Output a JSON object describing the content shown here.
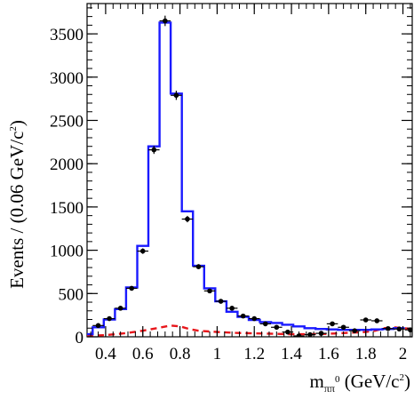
{
  "chart_data": {
    "type": "line",
    "xlabel": {
      "base": "m",
      "sub": "ππ",
      "subsup": "0",
      "unit": " (GeV/c",
      "unit_sup": "2",
      "unit_close": ")"
    },
    "ylabel": {
      "text": "Events / (0.06 GeV/c",
      "sup": "2",
      "close": ")"
    },
    "xlim": [
      0.3,
      2.05
    ],
    "ylim": [
      0,
      3850
    ],
    "x_ticks": [
      "0.4",
      "0.6",
      "0.8",
      "1",
      "1.2",
      "1.4",
      "1.6",
      "1.8",
      "2"
    ],
    "x_tick_values": [
      0.4,
      0.6,
      0.8,
      1.0,
      1.2,
      1.4,
      1.6,
      1.8,
      2.0
    ],
    "y_ticks": [
      "0",
      "500",
      "1000",
      "1500",
      "2000",
      "2500",
      "3000",
      "3500"
    ],
    "y_tick_values": [
      0,
      500,
      1000,
      1500,
      2000,
      2500,
      3000,
      3500
    ],
    "grid": false,
    "series": [
      {
        "kind": "points",
        "color": "#000000",
        "points": [
          {
            "x": 0.36,
            "y": 130,
            "err": 15
          },
          {
            "x": 0.42,
            "y": 210,
            "err": 18
          },
          {
            "x": 0.48,
            "y": 330,
            "err": 20
          },
          {
            "x": 0.54,
            "y": 560,
            "err": 24
          },
          {
            "x": 0.6,
            "y": 990,
            "err": 32
          },
          {
            "x": 0.66,
            "y": 2160,
            "err": 47
          },
          {
            "x": 0.72,
            "y": 3650,
            "err": 60
          },
          {
            "x": 0.78,
            "y": 2790,
            "err": 53
          },
          {
            "x": 0.84,
            "y": 1360,
            "err": 37
          },
          {
            "x": 0.9,
            "y": 810,
            "err": 28
          },
          {
            "x": 0.96,
            "y": 530,
            "err": 23
          },
          {
            "x": 1.02,
            "y": 410,
            "err": 20
          },
          {
            "x": 1.08,
            "y": 330,
            "err": 18
          },
          {
            "x": 1.14,
            "y": 240,
            "err": 16
          },
          {
            "x": 1.2,
            "y": 210,
            "err": 15
          },
          {
            "x": 1.26,
            "y": 150,
            "err": 13
          },
          {
            "x": 1.32,
            "y": 110,
            "err": 11
          },
          {
            "x": 1.38,
            "y": 55,
            "err": 8
          },
          {
            "x": 1.44,
            "y": 10,
            "err": 6
          },
          {
            "x": 1.5,
            "y": 25,
            "err": 7
          },
          {
            "x": 1.56,
            "y": 40,
            "err": 8
          },
          {
            "x": 1.62,
            "y": 150,
            "err": 13
          },
          {
            "x": 1.68,
            "y": 110,
            "err": 11
          },
          {
            "x": 1.74,
            "y": 70,
            "err": 9
          },
          {
            "x": 1.8,
            "y": 195,
            "err": 14
          },
          {
            "x": 1.86,
            "y": 185,
            "err": 14
          },
          {
            "x": 1.92,
            "y": 95,
            "err": 10
          },
          {
            "x": 1.98,
            "y": 90,
            "err": 10
          },
          {
            "x": 2.04,
            "y": 80,
            "err": 10
          }
        ]
      },
      {
        "kind": "step",
        "color": "#1a1aff",
        "bin_width": 0.06,
        "x_start": 0.27,
        "values": [
          30,
          110,
          200,
          320,
          570,
          1050,
          2200,
          3630,
          2810,
          1450,
          820,
          560,
          410,
          290,
          230,
          195,
          170,
          160,
          140,
          120,
          100,
          90,
          85,
          80,
          80,
          80,
          85,
          90,
          100
        ]
      },
      {
        "kind": "dashed",
        "color": "#e8161b",
        "points": [
          [
            0.3,
            10
          ],
          [
            0.4,
            20
          ],
          [
            0.5,
            40
          ],
          [
            0.6,
            70
          ],
          [
            0.7,
            110
          ],
          [
            0.75,
            130
          ],
          [
            0.8,
            120
          ],
          [
            0.85,
            90
          ],
          [
            0.9,
            70
          ],
          [
            1.0,
            55
          ],
          [
            1.1,
            45
          ],
          [
            1.2,
            40
          ],
          [
            1.3,
            35
          ],
          [
            1.4,
            30
          ],
          [
            1.5,
            30
          ],
          [
            1.6,
            35
          ],
          [
            1.7,
            45
          ],
          [
            1.8,
            55
          ],
          [
            1.85,
            70
          ],
          [
            1.9,
            100
          ],
          [
            1.95,
            110
          ],
          [
            2.0,
            100
          ],
          [
            2.05,
            90
          ]
        ]
      }
    ]
  }
}
